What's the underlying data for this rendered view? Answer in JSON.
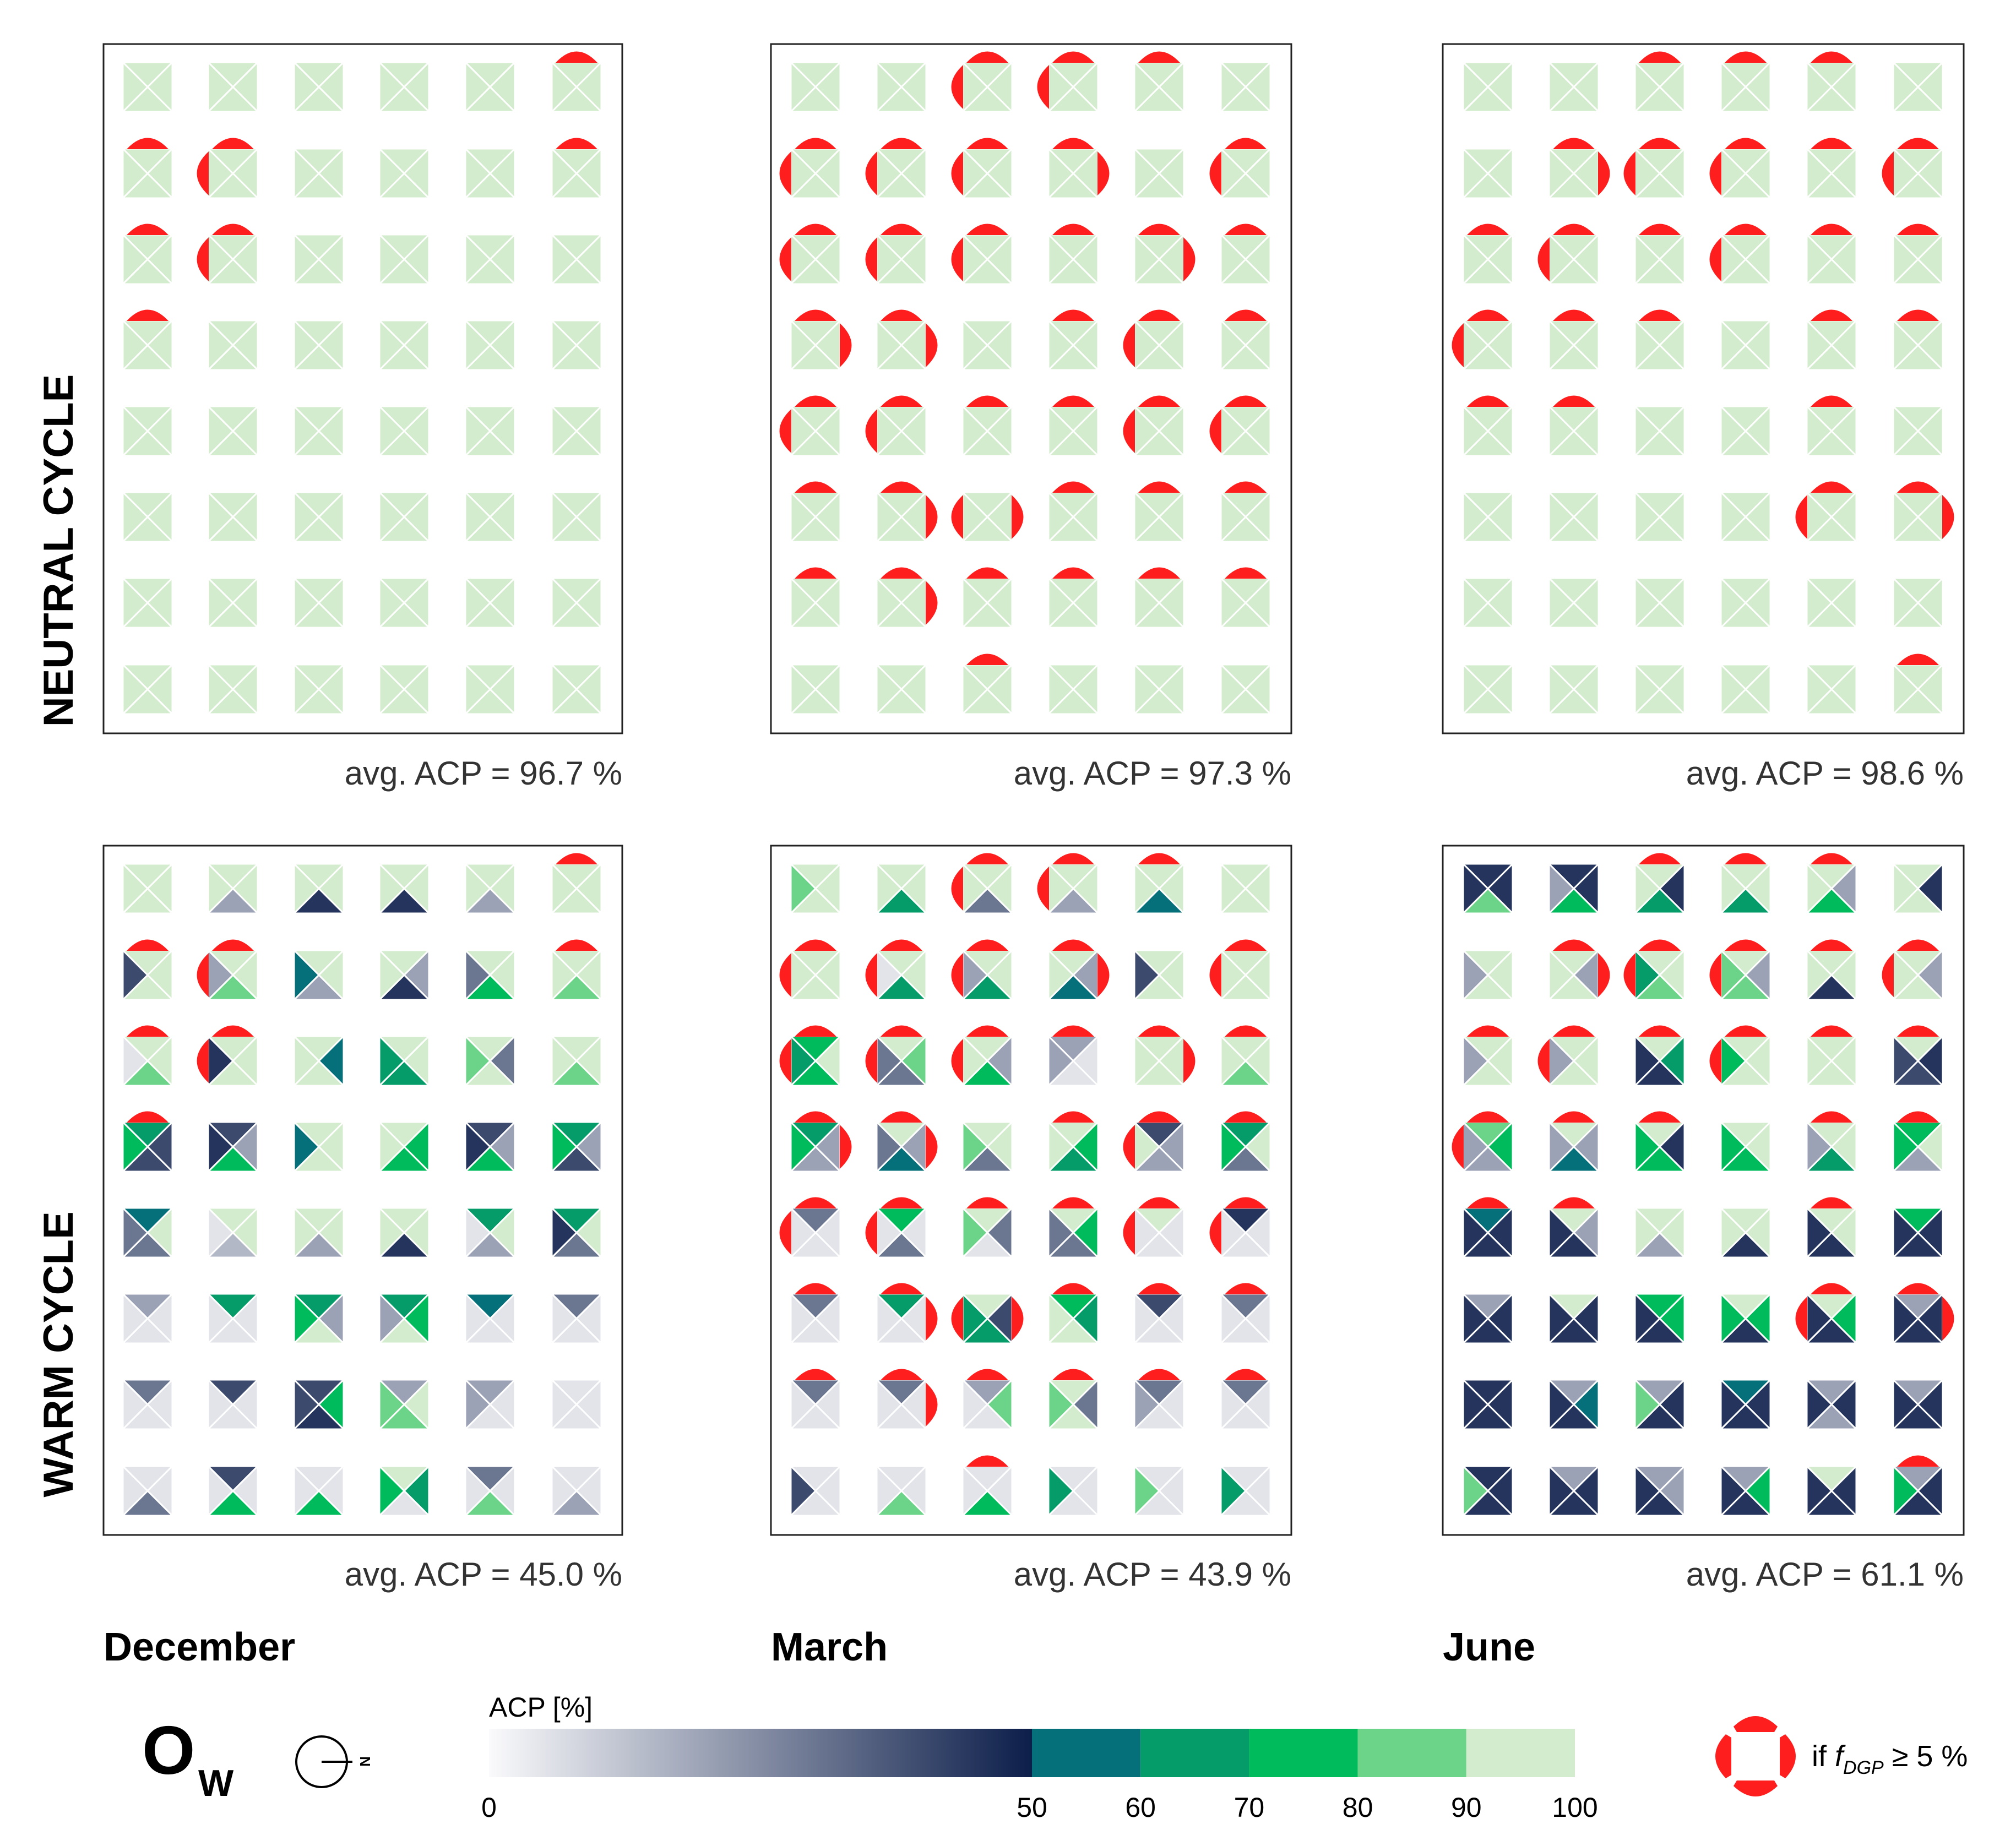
{
  "chart_data": {
    "type": "heatmap",
    "title": "",
    "rows": 8,
    "cols": 6,
    "cell_encoding": "Each cell is split into four triangles (top, right, bottom, left); triangle colour shows ACP [%]",
    "row_labels": [
      "NEUTRAL CYCLE",
      "WARM CYCLE"
    ],
    "column_labels": [
      "December",
      "March",
      "June"
    ],
    "panels": [
      {
        "name": "neutral-december",
        "cycle": "NEUTRAL CYCLE",
        "month": "December",
        "avg_label": "avg. ACP =  96.7 %",
        "avg_acp": 96.7
      },
      {
        "name": "neutral-march",
        "cycle": "NEUTRAL CYCLE",
        "month": "March",
        "avg_label": "avg. ACP = 97.3 %",
        "avg_acp": 97.3
      },
      {
        "name": "neutral-june",
        "cycle": "NEUTRAL CYCLE",
        "month": "June",
        "avg_label": "avg. ACP = 98.6 %",
        "avg_acp": 98.6
      },
      {
        "name": "warm-december",
        "cycle": "WARM CYCLE",
        "month": "December",
        "avg_label": "avg. ACP = 45.0 %",
        "avg_acp": 45.0
      },
      {
        "name": "warm-march",
        "cycle": "WARM CYCLE",
        "month": "March",
        "avg_label": "avg. ACP = 43.9 %",
        "avg_acp": 43.9
      },
      {
        "name": "warm-june",
        "cycle": "WARM CYCLE",
        "month": "June",
        "avg_label": "avg. ACP = 61.1 %",
        "avg_acp": 61.1
      }
    ],
    "colorbar": {
      "label": "ACP [%]",
      "range": [
        0,
        100
      ],
      "tick_labels": [
        "0",
        "50",
        "60",
        "70",
        "80",
        "90",
        "100"
      ],
      "tick_values": [
        0,
        50,
        60,
        70,
        80,
        90,
        100
      ],
      "gradient_range": [
        0,
        50
      ],
      "gradient_colors": [
        "#fafafc",
        "#0c1e4a"
      ],
      "bands": [
        {
          "range": [
            50,
            60
          ],
          "color": "#05707a"
        },
        {
          "range": [
            60,
            70
          ],
          "color": "#059c69"
        },
        {
          "range": [
            70,
            80
          ],
          "color": "#00bb5b"
        },
        {
          "range": [
            80,
            90
          ],
          "color": "#6cd489"
        },
        {
          "range": [
            90,
            100
          ],
          "color": "#d3ecce"
        }
      ]
    },
    "legend": {
      "orientation_symbol": "O",
      "orientation_subscript": "W",
      "compass_label": "N",
      "glare_label_prefix": "if ",
      "glare_label_symbol": "f",
      "glare_label_subscript": "DGP",
      "glare_label_suffix": " ≥ 5 %",
      "glare_color": "#ff1e1e",
      "glare_marker_note": "red arc on a cell side marks that side's view direction where f_DGP ≥ 5 %"
    },
    "colors": {
      "cell_high": "#d3ecce",
      "frame": "#222222",
      "text": "#333333"
    },
    "neutral_glare": [
      "......................T...T...TL..............T...T...TL..................T.............................................................................................",
      "..........TL..TL..T.......TL..TL..TL..TR......TL..TL..TL..TL..T...TRT...TRT...TR......T...TLT...TLT...TLT...T...TLT...TLT...TR..LR..T...T...T...T...TR..T...T...T...T...........T.................................................................",
      "........T...T...T...........TR..TLT...TLT...TL....T...TLT...TL....T...T...TL..T...T.......T...T...T...T.........T.......................TL..TR..............................................T......."
    ],
    "warm_cells": {
      "december": [
        [
          [
            100,
            100,
            100,
            90
          ],
          [
            100,
            100,
            20,
            100
          ],
          [
            100,
            100,
            45,
            100
          ],
          [
            100,
            100,
            45,
            100
          ],
          [
            100,
            100,
            20,
            100
          ],
          [
            100,
            100,
            100,
            100
          ]
        ],
        [
          [
            100,
            100,
            100,
            40
          ],
          [
            100,
            100,
            80,
            20
          ],
          [
            100,
            100,
            20,
            50
          ],
          [
            100,
            20,
            45,
            100
          ],
          [
            100,
            100,
            70,
            30
          ],
          [
            100,
            100,
            80,
            100
          ]
        ],
        [
          [
            100,
            100,
            80,
            5
          ],
          [
            100,
            100,
            100,
            45
          ],
          [
            100,
            50,
            100,
            100
          ],
          [
            100,
            100,
            60,
            60
          ],
          [
            100,
            30,
            100,
            80
          ],
          [
            100,
            100,
            80,
            100
          ]
        ],
        [
          [
            60,
            40,
            40,
            70
          ],
          [
            40,
            20,
            70,
            45
          ],
          [
            100,
            100,
            100,
            50
          ],
          [
            100,
            70,
            70,
            100
          ],
          [
            40,
            20,
            70,
            45
          ],
          [
            60,
            20,
            40,
            70
          ]
        ],
        [
          [
            50,
            100,
            30,
            30
          ],
          [
            100,
            100,
            15,
            5
          ],
          [
            100,
            100,
            20,
            100
          ],
          [
            100,
            100,
            45,
            100
          ],
          [
            60,
            100,
            20,
            5
          ],
          [
            60,
            100,
            30,
            45
          ]
        ],
        [
          [
            20,
            5,
            5,
            5
          ],
          [
            60,
            5,
            5,
            5
          ],
          [
            60,
            20,
            100,
            70
          ],
          [
            60,
            70,
            100,
            20
          ],
          [
            50,
            5,
            5,
            5
          ],
          [
            30,
            5,
            5,
            5
          ]
        ],
        [
          [
            30,
            5,
            5,
            5
          ],
          [
            40,
            5,
            5,
            5
          ],
          [
            40,
            70,
            45,
            40
          ],
          [
            20,
            100,
            80,
            80
          ],
          [
            20,
            5,
            5,
            20
          ],
          [
            5,
            5,
            5,
            5
          ]
        ],
        [
          [
            5,
            5,
            30,
            5
          ],
          [
            40,
            5,
            70,
            5
          ],
          [
            5,
            5,
            70,
            5
          ],
          [
            100,
            60,
            5,
            70
          ],
          [
            30,
            5,
            80,
            5
          ],
          [
            5,
            5,
            20,
            5
          ]
        ]
      ],
      "march": [
        [
          [
            100,
            100,
            100,
            80
          ],
          [
            100,
            100,
            60,
            100
          ],
          [
            100,
            100,
            30,
            100
          ],
          [
            100,
            100,
            20,
            100
          ],
          [
            100,
            100,
            50,
            100
          ],
          [
            100,
            100,
            100,
            100
          ]
        ],
        [
          [
            100,
            100,
            100,
            100
          ],
          [
            100,
            100,
            60,
            5
          ],
          [
            100,
            100,
            60,
            20
          ],
          [
            100,
            20,
            50,
            100
          ],
          [
            100,
            100,
            100,
            40
          ],
          [
            100,
            100,
            100,
            100
          ]
        ],
        [
          [
            70,
            100,
            70,
            60
          ],
          [
            100,
            80,
            30,
            30
          ],
          [
            100,
            20,
            70,
            100
          ],
          [
            20,
            5,
            5,
            20
          ],
          [
            100,
            100,
            100,
            100
          ],
          [
            100,
            100,
            80,
            100
          ]
        ],
        [
          [
            60,
            20,
            20,
            70
          ],
          [
            100,
            20,
            50,
            30
          ],
          [
            100,
            100,
            30,
            80
          ],
          [
            100,
            70,
            60,
            100
          ],
          [
            40,
            20,
            20,
            100
          ],
          [
            60,
            100,
            30,
            70
          ]
        ],
        [
          [
            30,
            5,
            5,
            5
          ],
          [
            70,
            5,
            30,
            5
          ],
          [
            100,
            30,
            5,
            80
          ],
          [
            100,
            70,
            30,
            30
          ],
          [
            100,
            5,
            5,
            5
          ],
          [
            45,
            5,
            5,
            5
          ]
        ],
        [
          [
            30,
            5,
            5,
            5
          ],
          [
            60,
            5,
            5,
            5
          ],
          [
            100,
            40,
            60,
            60
          ],
          [
            70,
            60,
            100,
            100
          ],
          [
            40,
            5,
            5,
            5
          ],
          [
            30,
            5,
            5,
            5
          ]
        ],
        [
          [
            30,
            5,
            5,
            5
          ],
          [
            30,
            5,
            5,
            5
          ],
          [
            20,
            80,
            5,
            5
          ],
          [
            100,
            30,
            100,
            80
          ],
          [
            30,
            5,
            5,
            20
          ],
          [
            30,
            5,
            5,
            5
          ]
        ],
        [
          [
            5,
            5,
            5,
            40
          ],
          [
            5,
            5,
            80,
            5
          ],
          [
            5,
            5,
            70,
            5
          ],
          [
            5,
            5,
            5,
            60
          ],
          [
            5,
            5,
            5,
            80
          ],
          [
            5,
            5,
            5,
            60
          ]
        ]
      ],
      "june": [
        [
          [
            45,
            45,
            80,
            45
          ],
          [
            45,
            45,
            70,
            20
          ],
          [
            100,
            45,
            60,
            100
          ],
          [
            100,
            100,
            60,
            100
          ],
          [
            100,
            20,
            70,
            100
          ],
          [
            100,
            45,
            100,
            100
          ]
        ],
        [
          [
            100,
            100,
            100,
            20
          ],
          [
            100,
            20,
            100,
            100
          ],
          [
            100,
            100,
            80,
            60
          ],
          [
            100,
            20,
            80,
            80
          ],
          [
            100,
            100,
            45,
            100
          ],
          [
            100,
            20,
            100,
            100
          ]
        ],
        [
          [
            100,
            100,
            100,
            20
          ],
          [
            100,
            100,
            100,
            20
          ],
          [
            100,
            60,
            45,
            45
          ],
          [
            100,
            100,
            100,
            70
          ],
          [
            100,
            100,
            100,
            100
          ],
          [
            100,
            45,
            40,
            40
          ]
        ],
        [
          [
            80,
            70,
            20,
            20
          ],
          [
            100,
            20,
            50,
            20
          ],
          [
            100,
            45,
            70,
            70
          ],
          [
            100,
            100,
            70,
            70
          ],
          [
            100,
            100,
            60,
            20
          ],
          [
            70,
            100,
            20,
            70
          ]
        ],
        [
          [
            50,
            45,
            45,
            45
          ],
          [
            100,
            20,
            45,
            45
          ],
          [
            100,
            100,
            20,
            100
          ],
          [
            100,
            100,
            45,
            100
          ],
          [
            100,
            100,
            45,
            45
          ],
          [
            70,
            45,
            45,
            45
          ]
        ],
        [
          [
            20,
            45,
            45,
            45
          ],
          [
            100,
            45,
            45,
            45
          ],
          [
            70,
            70,
            45,
            45
          ],
          [
            100,
            70,
            45,
            70
          ],
          [
            100,
            70,
            45,
            45
          ],
          [
            20,
            45,
            45,
            45
          ]
        ],
        [
          [
            45,
            45,
            45,
            45
          ],
          [
            20,
            50,
            45,
            45
          ],
          [
            20,
            45,
            45,
            80
          ],
          [
            50,
            45,
            45,
            45
          ],
          [
            20,
            45,
            20,
            45
          ],
          [
            20,
            45,
            45,
            45
          ]
        ],
        [
          [
            45,
            45,
            45,
            80
          ],
          [
            20,
            45,
            45,
            45
          ],
          [
            20,
            20,
            45,
            45
          ],
          [
            20,
            70,
            45,
            45
          ],
          [
            100,
            45,
            45,
            45
          ],
          [
            20,
            45,
            45,
            70
          ]
        ]
      ]
    }
  }
}
